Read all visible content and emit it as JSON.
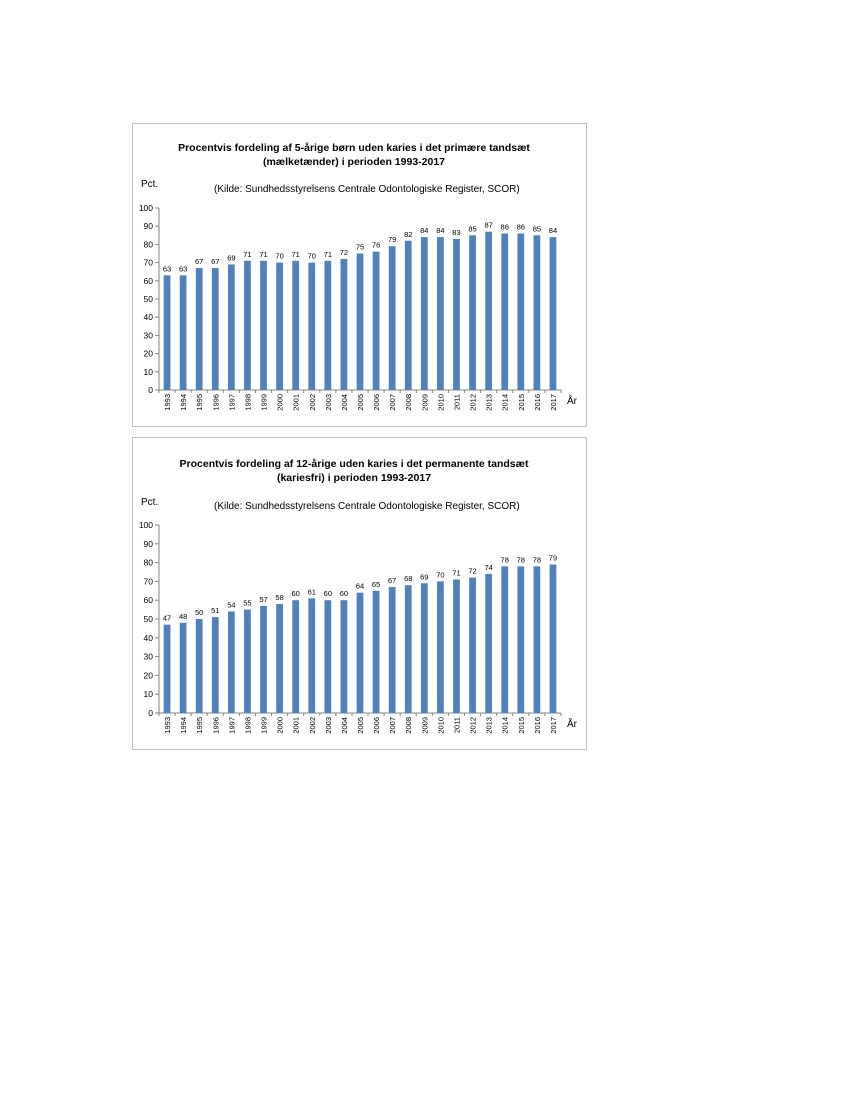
{
  "chart_data": [
    {
      "type": "bar",
      "title_lines": [
        "Procentvis fordeling af 5-årige børn uden karies i det primære tandsæt",
        "(mælketænder) i perioden 1993-2017"
      ],
      "source": "(Kilde: Sundhedsstyrelsens Centrale Odontologiske Register, SCOR)",
      "ylabel": "Pct.",
      "xlabel": "År",
      "ylim": [
        0,
        100
      ],
      "yticks": [
        "0",
        "10",
        "20",
        "30",
        "40",
        "50",
        "60",
        "70",
        "80",
        "90",
        "100"
      ],
      "categories": [
        "1993",
        "1994",
        "1995",
        "1996",
        "1997",
        "1998",
        "1999",
        "2000",
        "2001",
        "2002",
        "2003",
        "2004",
        "2005",
        "2006",
        "2007",
        "2008",
        "2009",
        "2010",
        "2011",
        "2012",
        "2013",
        "2014",
        "2015",
        "2016",
        "2017"
      ],
      "values": [
        63,
        63,
        67,
        67,
        69,
        71,
        71,
        70,
        71,
        70,
        71,
        72,
        75,
        76,
        79,
        82,
        84,
        84,
        83,
        85,
        87,
        86,
        86,
        85,
        84
      ],
      "data_labels": [
        "63",
        "63",
        "67",
        "67",
        "69",
        "71",
        "71",
        "70",
        "71",
        "70",
        "71",
        "72",
        "75",
        "76",
        "79",
        "82",
        "84",
        "84",
        "83",
        "85",
        "87",
        "86",
        "86",
        "85",
        "84"
      ],
      "bar_color": "#4F81BD",
      "grid": false
    },
    {
      "type": "bar",
      "title_lines": [
        "Procentvis fordeling af 12-årige uden karies i det permanente tandsæt",
        "(kariesfri) i perioden 1993-2017"
      ],
      "source": "(Kilde: Sundhedsstyrelsens Centrale Odontologiske Register, SCOR)",
      "ylabel": "Pct.",
      "xlabel": "År",
      "ylim": [
        0,
        100
      ],
      "yticks": [
        "0",
        "10",
        "20",
        "30",
        "40",
        "50",
        "60",
        "70",
        "80",
        "90",
        "100"
      ],
      "categories": [
        "1993",
        "1994",
        "1995",
        "1996",
        "1997",
        "1998",
        "1999",
        "2000",
        "2001",
        "2002",
        "2003",
        "2004",
        "2005",
        "2006",
        "2007",
        "2008",
        "2009",
        "2010",
        "2011",
        "2012",
        "2013",
        "2014",
        "2015",
        "2016",
        "2017"
      ],
      "values": [
        47,
        48,
        50,
        51,
        54,
        55,
        57,
        58,
        60,
        61,
        60,
        60,
        64,
        65,
        67,
        68,
        69,
        70,
        71,
        72,
        74,
        78,
        78,
        78,
        79
      ],
      "data_labels": [
        "47",
        "48",
        "50",
        "51",
        "54",
        "55",
        "57",
        "58",
        "60",
        "61",
        "60",
        "60",
        "64",
        "65",
        "67",
        "68",
        "69",
        "70",
        "71",
        "72",
        "74",
        "78",
        "78",
        "78",
        "79"
      ],
      "bar_color": "#4F81BD",
      "grid": false
    }
  ]
}
